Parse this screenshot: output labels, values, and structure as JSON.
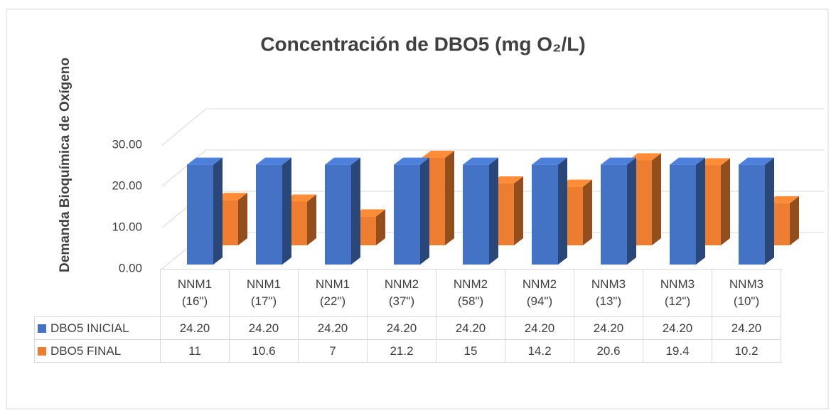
{
  "chart_data": {
    "type": "bar3d",
    "title": "Concentración de DBO5 (mg O₂/L)",
    "y_label": "Demanda Bioquímica de Oxígeno",
    "categories": [
      "NNM1 (16\")",
      "NNM1 (17\")",
      "NNM1 (22\")",
      "NNM2 (37\")",
      "NNM2 (58\")",
      "NNM2 (94\")",
      "NNM3 (13\")",
      "NNM3 (12\")",
      "NNM3 (10\")"
    ],
    "series": [
      {
        "name": "DBO5 INICIAL",
        "color": "#4472c4",
        "values": [
          24.2,
          24.2,
          24.2,
          24.2,
          24.2,
          24.2,
          24.2,
          24.2,
          24.2
        ],
        "value_labels": [
          "24.20",
          "24.20",
          "24.20",
          "24.20",
          "24.20",
          "24.20",
          "24.20",
          "24.20",
          "24.20"
        ]
      },
      {
        "name": "DBO5 FINAL",
        "color": "#ed7d31",
        "values": [
          11,
          10.6,
          7,
          21.2,
          15,
          14.2,
          20.6,
          19.4,
          10.2
        ]
      }
    ],
    "ylim": [
      0,
      30
    ],
    "yticks": [
      {
        "value": 0,
        "label": "0.00"
      },
      {
        "value": 10,
        "label": "10.00"
      },
      {
        "value": 20,
        "label": "20.00"
      },
      {
        "value": 30,
        "label": "30.00"
      }
    ],
    "grid": true
  }
}
